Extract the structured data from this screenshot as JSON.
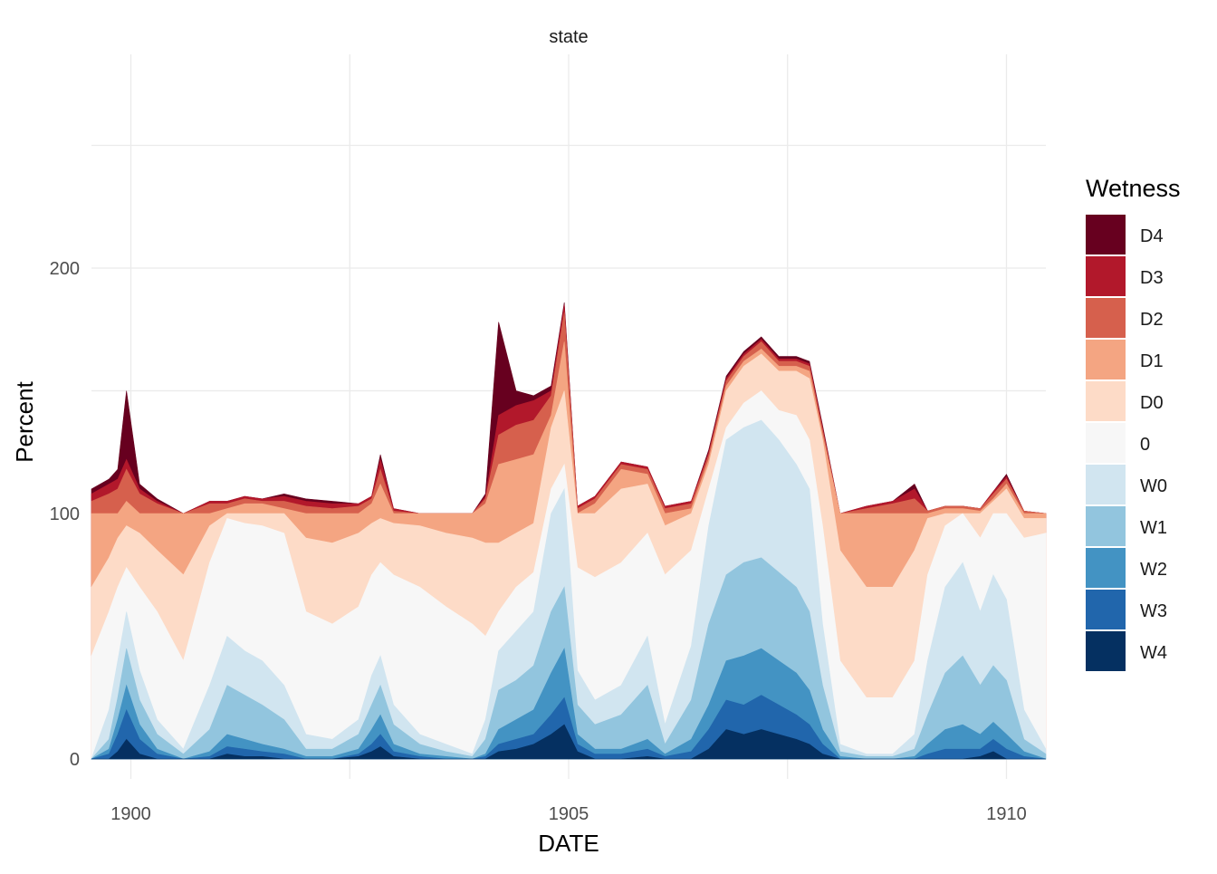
{
  "chart_data": {
    "type": "area",
    "stacked": true,
    "facet_label": "state",
    "xlabel": "DATE",
    "ylabel": "Percent",
    "xlim": [
      1899.55,
      1910.45
    ],
    "ylim": [
      -10,
      250
    ],
    "x_ticks": [
      {
        "value": 1900,
        "label": "1900"
      },
      {
        "value": 1905,
        "label": "1905"
      },
      {
        "value": 1910,
        "label": "1910"
      }
    ],
    "y_ticks": [
      {
        "value": 0,
        "label": "0"
      },
      {
        "value": 100,
        "label": "100"
      },
      {
        "value": 200,
        "label": "200"
      }
    ],
    "grid": true,
    "legend": {
      "title": "Wetness",
      "position": "right"
    },
    "colors": {
      "D4": "#67001f",
      "D3": "#b2182b",
      "D2": "#d6604d",
      "D1": "#f4a582",
      "D0": "#fddbc7",
      "0": "#f7f7f7",
      "W0": "#d1e5f0",
      "W1": "#92c5de",
      "W2": "#4393c3",
      "W3": "#2166ac",
      "W4": "#053061"
    },
    "series_order_bottom_to_top": [
      "W4",
      "W3",
      "W2",
      "W1",
      "W0",
      "0",
      "D0",
      "D1",
      "D2",
      "D3",
      "D4"
    ],
    "legend_order": [
      "D4",
      "D3",
      "D2",
      "D1",
      "D0",
      "0",
      "W0",
      "W1",
      "W2",
      "W3",
      "W4"
    ],
    "x": [
      1899.55,
      1899.75,
      1899.85,
      1899.95,
      1900.1,
      1900.3,
      1900.6,
      1900.9,
      1901.1,
      1901.3,
      1901.5,
      1901.75,
      1902.0,
      1902.3,
      1902.6,
      1902.75,
      1902.85,
      1903.0,
      1903.3,
      1903.6,
      1903.9,
      1904.05,
      1904.2,
      1904.4,
      1904.6,
      1904.8,
      1904.95,
      1905.1,
      1905.3,
      1905.6,
      1905.9,
      1906.1,
      1906.4,
      1906.6,
      1906.8,
      1907.0,
      1907.2,
      1907.4,
      1907.6,
      1907.75,
      1907.9,
      1908.1,
      1908.4,
      1908.7,
      1908.95,
      1909.1,
      1909.3,
      1909.5,
      1909.7,
      1909.85,
      1910.0,
      1910.2,
      1910.45
    ],
    "series": [
      {
        "name": "W4",
        "values": [
          0,
          0,
          3,
          8,
          2,
          0,
          0,
          0,
          2,
          1,
          1,
          0,
          0,
          0,
          1,
          3,
          5,
          1,
          0,
          0,
          0,
          0,
          3,
          4,
          6,
          10,
          14,
          3,
          0,
          0,
          1,
          0,
          0,
          4,
          12,
          10,
          12,
          10,
          8,
          6,
          2,
          0,
          0,
          0,
          0,
          0,
          0,
          0,
          1,
          3,
          0,
          0,
          0
        ]
      },
      {
        "name": "W3",
        "values": [
          0,
          2,
          10,
          20,
          8,
          2,
          0,
          1,
          5,
          4,
          3,
          2,
          0,
          0,
          2,
          6,
          10,
          3,
          1,
          0,
          0,
          1,
          6,
          8,
          10,
          18,
          25,
          6,
          2,
          2,
          4,
          1,
          3,
          12,
          24,
          22,
          26,
          22,
          18,
          14,
          6,
          0,
          0,
          0,
          0,
          2,
          4,
          4,
          4,
          8,
          4,
          1,
          0
        ]
      },
      {
        "name": "W2",
        "values": [
          0,
          4,
          16,
          30,
          14,
          4,
          0,
          3,
          10,
          8,
          6,
          4,
          1,
          1,
          4,
          12,
          18,
          6,
          2,
          1,
          0,
          2,
          12,
          16,
          20,
          35,
          45,
          10,
          4,
          4,
          8,
          2,
          8,
          22,
          40,
          42,
          45,
          40,
          35,
          28,
          12,
          1,
          0,
          0,
          1,
          6,
          12,
          14,
          10,
          15,
          10,
          3,
          0
        ]
      },
      {
        "name": "W1",
        "values": [
          0,
          8,
          25,
          45,
          24,
          10,
          2,
          12,
          30,
          26,
          22,
          16,
          4,
          4,
          10,
          22,
          30,
          14,
          6,
          3,
          1,
          8,
          28,
          32,
          38,
          60,
          70,
          22,
          14,
          18,
          30,
          6,
          24,
          55,
          75,
          80,
          82,
          76,
          70,
          60,
          30,
          3,
          1,
          1,
          4,
          18,
          35,
          42,
          30,
          38,
          32,
          8,
          2
        ]
      },
      {
        "name": "W0",
        "values": [
          0,
          20,
          40,
          60,
          36,
          16,
          4,
          30,
          50,
          44,
          40,
          30,
          10,
          8,
          16,
          34,
          42,
          22,
          10,
          6,
          2,
          16,
          44,
          52,
          60,
          100,
          110,
          36,
          24,
          30,
          50,
          14,
          46,
          95,
          130,
          135,
          138,
          130,
          120,
          110,
          55,
          6,
          2,
          2,
          10,
          40,
          70,
          80,
          60,
          75,
          65,
          20,
          4
        ]
      },
      {
        "name": "0",
        "values": [
          42,
          60,
          70,
          78,
          70,
          60,
          40,
          80,
          98,
          96,
          95,
          92,
          60,
          55,
          62,
          75,
          80,
          75,
          70,
          62,
          55,
          50,
          60,
          70,
          76,
          110,
          120,
          78,
          74,
          80,
          92,
          75,
          85,
          110,
          135,
          145,
          150,
          142,
          140,
          130,
          95,
          40,
          25,
          25,
          40,
          75,
          95,
          100,
          90,
          100,
          100,
          90,
          92
        ]
      },
      {
        "name": "D0",
        "values": [
          70,
          82,
          90,
          95,
          92,
          85,
          75,
          95,
          100,
          100,
          100,
          100,
          90,
          88,
          92,
          96,
          98,
          96,
          95,
          92,
          90,
          88,
          88,
          92,
          96,
          135,
          150,
          100,
          100,
          110,
          112,
          95,
          100,
          120,
          150,
          160,
          165,
          158,
          158,
          155,
          130,
          85,
          70,
          70,
          85,
          98,
          100,
          100,
          100,
          105,
          110,
          98,
          98
        ]
      },
      {
        "name": "D1",
        "values": [
          100,
          100,
          100,
          105,
          100,
          100,
          100,
          100,
          102,
          104,
          104,
          102,
          100,
          100,
          100,
          104,
          112,
          100,
          100,
          100,
          100,
          104,
          120,
          122,
          124,
          140,
          170,
          100,
          104,
          118,
          116,
          100,
          102,
          122,
          152,
          162,
          167,
          160,
          160,
          158,
          132,
          100,
          100,
          100,
          100,
          100,
          102,
          102,
          101,
          106,
          112,
          100,
          100
        ]
      },
      {
        "name": "D2",
        "values": [
          105,
          108,
          110,
          118,
          108,
          104,
          100,
          104,
          104,
          106,
          105,
          105,
          103,
          102,
          103,
          106,
          118,
          101,
          100,
          100,
          100,
          106,
          132,
          136,
          138,
          148,
          182,
          102,
          106,
          120,
          118,
          102,
          104,
          124,
          154,
          164,
          170,
          162,
          162,
          160,
          134,
          100,
          102,
          104,
          106,
          101,
          103,
          103,
          102,
          108,
          114,
          101,
          100
        ]
      },
      {
        "name": "D3",
        "values": [
          108,
          112,
          114,
          122,
          110,
          105,
          100,
          105,
          105,
          107,
          106,
          107,
          105,
          104,
          104,
          107,
          122,
          102,
          100,
          100,
          100,
          107,
          140,
          144,
          146,
          150,
          185,
          103,
          107,
          121,
          119,
          103,
          105,
          125,
          155,
          165,
          171,
          163,
          163,
          161,
          135,
          100,
          103,
          105,
          110,
          101,
          103,
          103,
          102,
          109,
          115,
          101,
          100
        ]
      },
      {
        "name": "D4",
        "values": [
          110,
          114,
          118,
          150,
          112,
          106,
          100,
          105,
          105,
          107,
          106,
          108,
          106,
          105,
          104,
          107,
          124,
          102,
          100,
          100,
          100,
          108,
          178,
          150,
          148,
          152,
          186,
          103,
          107,
          121,
          119,
          103,
          105,
          126,
          156,
          166,
          172,
          164,
          164,
          162,
          136,
          100,
          103,
          105,
          112,
          101,
          103,
          103,
          102,
          109,
          116,
          101,
          100
        ]
      }
    ]
  }
}
